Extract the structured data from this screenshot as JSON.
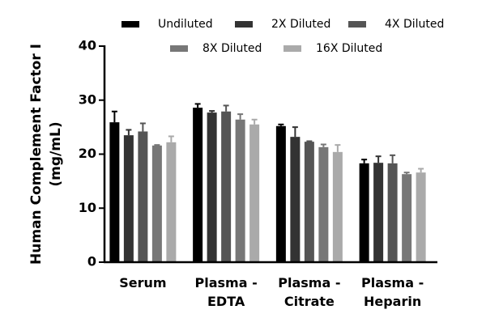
{
  "chart_data": {
    "type": "bar",
    "ylabel": [
      "Human Complement Factor I",
      "(mg/mL)"
    ],
    "categories": [
      [
        "Serum"
      ],
      [
        "Plasma -",
        "EDTA"
      ],
      [
        "Plasma -",
        "Citrate"
      ],
      [
        "Plasma -",
        "Heparin"
      ]
    ],
    "series": [
      {
        "name": "Undiluted",
        "color": "#000000",
        "values": [
          25.9,
          28.6,
          25.2,
          18.3
        ],
        "errors": [
          2.0,
          0.7,
          0.3,
          0.7
        ]
      },
      {
        "name": "2X Diluted",
        "color": "#333333",
        "values": [
          23.5,
          27.7,
          23.2,
          18.4
        ],
        "errors": [
          1.0,
          0.3,
          1.8,
          1.2
        ]
      },
      {
        "name": "4X Diluted",
        "color": "#555555",
        "values": [
          24.2,
          27.9,
          22.3,
          18.3
        ],
        "errors": [
          1.5,
          1.1,
          0.1,
          1.5
        ]
      },
      {
        "name": "8X Diluted",
        "color": "#777777",
        "values": [
          21.6,
          26.4,
          21.3,
          16.3
        ],
        "errors": [
          0.1,
          1.0,
          0.5,
          0.3
        ]
      },
      {
        "name": "16X Diluted",
        "color": "#aaaaaa",
        "values": [
          22.2,
          25.5,
          20.4,
          16.6
        ],
        "errors": [
          1.1,
          0.9,
          1.3,
          0.7
        ]
      }
    ],
    "ylim": [
      0,
      40
    ],
    "yticks": [
      0,
      10,
      20,
      30,
      40
    ],
    "grid": false
  }
}
